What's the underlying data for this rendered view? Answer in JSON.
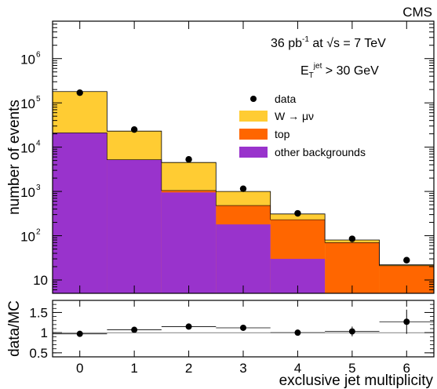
{
  "chart_data": {
    "type": "bar",
    "brand": "CMS",
    "annotations": {
      "lumi": {
        "value": "36 pb",
        "exponent": "-1",
        "at": "at",
        "sqrt_symbol": "√",
        "energy": "s = 7 TeV"
      },
      "jet_cut": {
        "prefix": "E",
        "subscript": "T",
        "superscript": "jet",
        "text": "> 30 GeV"
      }
    },
    "x": {
      "label": "exclusive jet multiplicity",
      "categories": [
        "0",
        "1",
        "2",
        "3",
        "4",
        "5",
        "6"
      ]
    },
    "top_panel": {
      "ylabel": "number of events",
      "yscale": "log",
      "ylim": [
        5,
        7000000
      ],
      "y_ticks": [
        {
          "value": 10,
          "label": "10"
        },
        {
          "value": 100,
          "base": "10",
          "exp": "2"
        },
        {
          "value": 1000,
          "base": "10",
          "exp": "3"
        },
        {
          "value": 10000,
          "base": "10",
          "exp": "4"
        },
        {
          "value": 100000,
          "base": "10",
          "exp": "5"
        },
        {
          "value": 1000000,
          "base": "10",
          "exp": "6"
        }
      ],
      "stack_cumulative": [
        {
          "name": "other backgrounds",
          "color": "#9933cc",
          "values": [
            21000,
            5200,
            950,
            180,
            30,
            5,
            5
          ]
        },
        {
          "name": "top",
          "color": "#ff6600",
          "values": [
            21000,
            5200,
            1050,
            480,
            230,
            70,
            21
          ]
        },
        {
          "name": "W → μν",
          "color": "#ffcc33",
          "values": [
            180000,
            23000,
            4500,
            1000,
            310,
            80,
            22
          ]
        }
      ],
      "data": {
        "name": "data",
        "values": [
          170000,
          25000,
          5300,
          1150,
          320,
          85,
          28
        ]
      },
      "legend_position": "top-right"
    },
    "ratio_panel": {
      "ylabel": "data/MC",
      "ylim": [
        0.4,
        1.8
      ],
      "y_ticks": [
        "0.5",
        "1",
        "1.5"
      ],
      "values": [
        0.97,
        1.07,
        1.15,
        1.12,
        1.0,
        1.03,
        1.27
      ],
      "errors": [
        0.01,
        0.01,
        0.02,
        0.04,
        0.06,
        0.12,
        0.3
      ]
    }
  }
}
